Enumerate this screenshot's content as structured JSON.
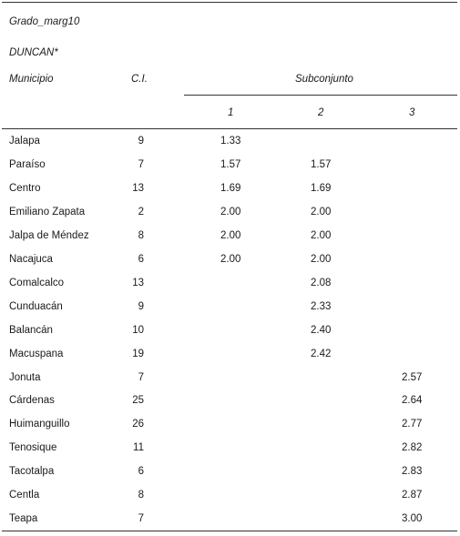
{
  "header": {
    "variable": "Grado_marg10",
    "method": "DUNCAN*"
  },
  "columns": {
    "municipio": "Municipio",
    "ci": "C.I.",
    "subconjunto": "Subconjunto",
    "subsets": [
      "1",
      "2",
      "3"
    ]
  },
  "rows": [
    {
      "municipio": "Jalapa",
      "ci": "9",
      "s1": "1.33",
      "s2": "",
      "s3": ""
    },
    {
      "municipio": "Paraíso",
      "ci": "7",
      "s1": "1.57",
      "s2": "1.57",
      "s3": ""
    },
    {
      "municipio": "Centro",
      "ci": "13",
      "s1": "1.69",
      "s2": "1.69",
      "s3": ""
    },
    {
      "municipio": "Emiliano Zapata",
      "ci": "2",
      "s1": "2.00",
      "s2": "2.00",
      "s3": ""
    },
    {
      "municipio": "Jalpa de Méndez",
      "ci": "8",
      "s1": "2.00",
      "s2": "2.00",
      "s3": ""
    },
    {
      "municipio": "Nacajuca",
      "ci": "6",
      "s1": "2.00",
      "s2": "2.00",
      "s3": ""
    },
    {
      "municipio": "Comalcalco",
      "ci": "13",
      "s1": "",
      "s2": "2.08",
      "s3": ""
    },
    {
      "municipio": "Cunduacán",
      "ci": "9",
      "s1": "",
      "s2": "2.33",
      "s3": ""
    },
    {
      "municipio": "Balancán",
      "ci": "10",
      "s1": "",
      "s2": "2.40",
      "s3": ""
    },
    {
      "municipio": "Macuspana",
      "ci": "19",
      "s1": "",
      "s2": "2.42",
      "s3": ""
    },
    {
      "municipio": "Jonuta",
      "ci": "7",
      "s1": "",
      "s2": "",
      "s3": "2.57"
    },
    {
      "municipio": "Cárdenas",
      "ci": "25",
      "s1": "",
      "s2": "",
      "s3": "2.64"
    },
    {
      "municipio": "Huimanguillo",
      "ci": "26",
      "s1": "",
      "s2": "",
      "s3": "2.77"
    },
    {
      "municipio": "Tenosique",
      "ci": "11",
      "s1": "",
      "s2": "",
      "s3": "2.82"
    },
    {
      "municipio": "Tacotalpa",
      "ci": "6",
      "s1": "",
      "s2": "",
      "s3": "2.83"
    },
    {
      "municipio": "Centla",
      "ci": "8",
      "s1": "",
      "s2": "",
      "s3": "2.87"
    },
    {
      "municipio": "Teapa",
      "ci": "7",
      "s1": "",
      "s2": "",
      "s3": "3.00"
    }
  ]
}
